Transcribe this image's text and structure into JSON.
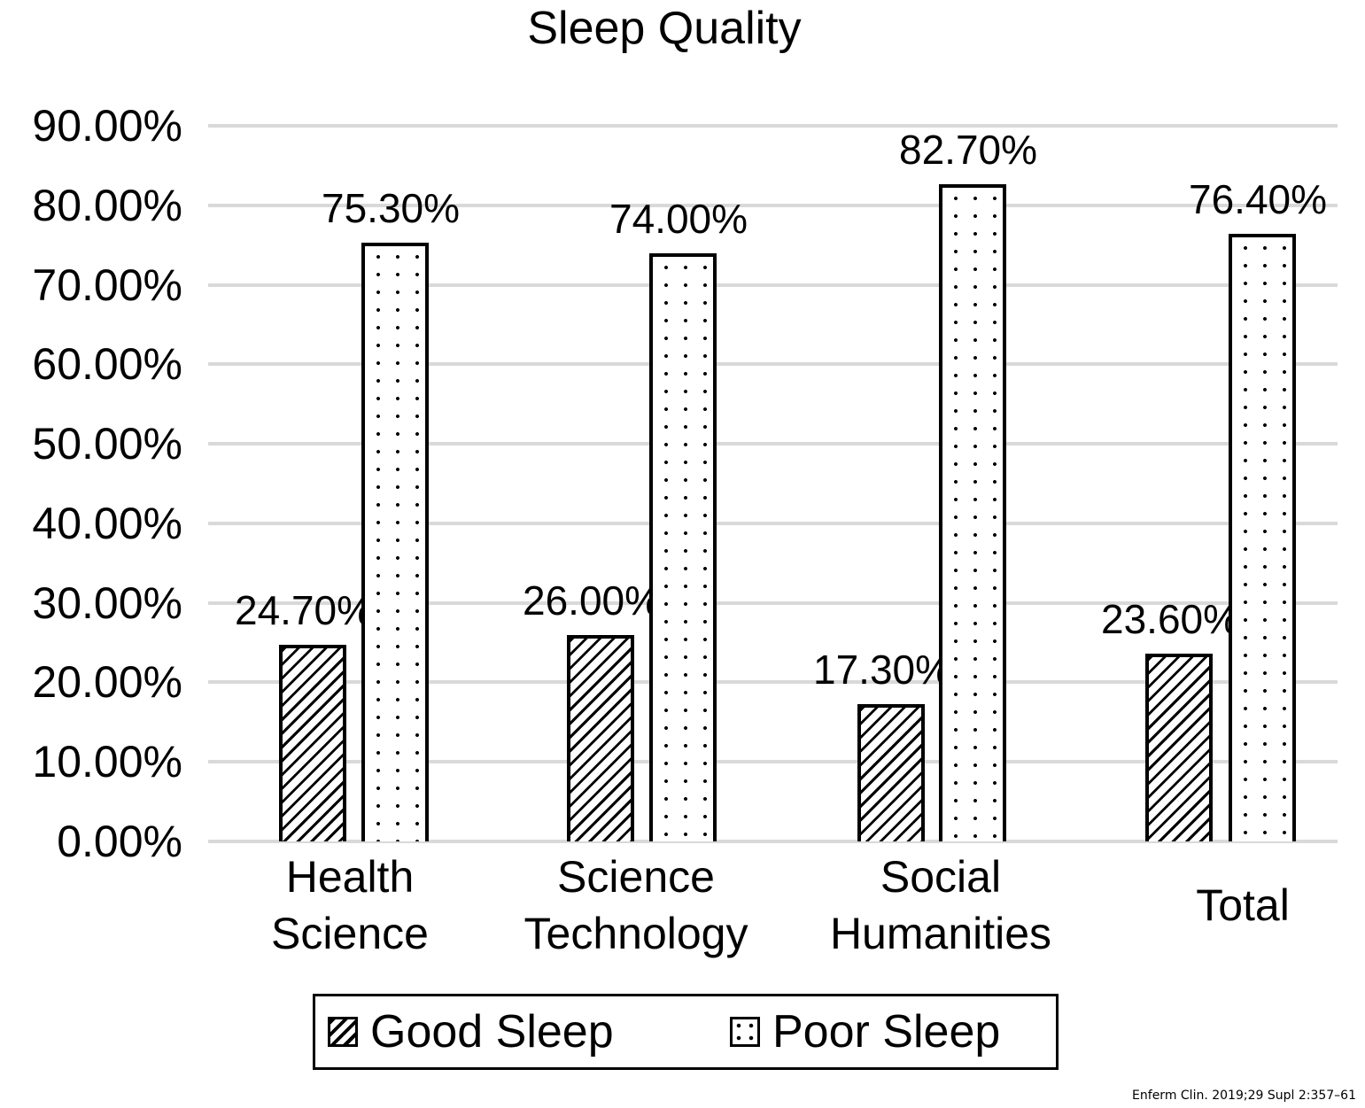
{
  "chart_data": {
    "type": "bar",
    "title": "Sleep Quality",
    "xlabel": "",
    "ylabel": "",
    "ylim": [
      0,
      90
    ],
    "y_ticks": [
      "0.00%",
      "10.00%",
      "20.00%",
      "30.00%",
      "40.00%",
      "50.00%",
      "60.00%",
      "70.00%",
      "80.00%",
      "90.00%"
    ],
    "grid": true,
    "legend_position": "bottom",
    "categories": [
      "Health Science",
      "Science Technology",
      "Social Humanities",
      "Total"
    ],
    "category_lines": [
      [
        "Health",
        "Science"
      ],
      [
        "Science",
        "Technology"
      ],
      [
        "Social",
        "Humanities"
      ],
      [
        "Total"
      ]
    ],
    "series": [
      {
        "name": "Good Sleep",
        "pattern": "diagonal-hatch",
        "values": [
          24.7,
          26.0,
          17.3,
          23.6
        ],
        "labels": [
          "24.70%",
          "26.00%",
          "17.30%",
          "23.60%"
        ]
      },
      {
        "name": "Poor Sleep",
        "pattern": "dotted",
        "values": [
          75.3,
          74.0,
          82.7,
          76.4
        ],
        "labels": [
          "75.30%",
          "74.00%",
          "82.70%",
          "76.40%"
        ]
      }
    ]
  },
  "source_note": "Enferm Clin. 2019;29 Supl 2:357–61"
}
